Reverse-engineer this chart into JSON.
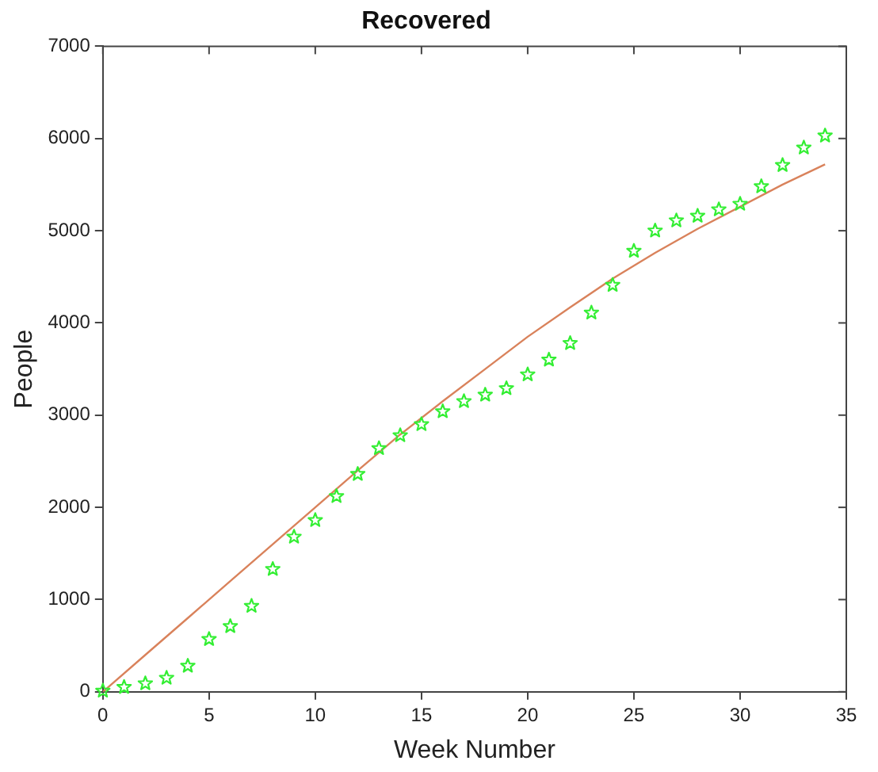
{
  "chart_data": {
    "type": "scatter",
    "title": "Recovered",
    "xlabel": "Week Number",
    "ylabel": "People",
    "xlim": [
      0,
      35
    ],
    "xticks": [
      0,
      5,
      10,
      15,
      20,
      25,
      30,
      35
    ],
    "ylim": [
      0,
      7000
    ],
    "yticks": [
      0,
      1000,
      2000,
      3000,
      4000,
      5000,
      6000,
      7000
    ],
    "grid": false,
    "legend": false,
    "series": [
      {
        "color": "#33ee33",
        "marker": "star",
        "x": [
          0,
          1,
          2,
          3,
          4,
          5,
          6,
          7,
          8,
          9,
          10,
          11,
          12,
          13,
          14,
          15,
          16,
          17,
          18,
          19,
          20,
          21,
          22,
          23,
          24,
          25,
          26,
          27,
          28,
          29,
          30,
          31,
          32,
          33,
          34
        ],
        "values": [
          10,
          50,
          90,
          150,
          280,
          570,
          710,
          930,
          1330,
          1680,
          1860,
          2120,
          2360,
          2640,
          2780,
          2900,
          3040,
          3150,
          3220,
          3290,
          3440,
          3600,
          3780,
          4110,
          4410,
          4780,
          5000,
          5110,
          5160,
          5230,
          5290,
          5480,
          5710,
          5900,
          6030
        ]
      },
      {
        "type": "line",
        "color": "#d9825b",
        "marker": "none",
        "line_style": "solid",
        "x": [
          0,
          2,
          4,
          6,
          8,
          10,
          12,
          14,
          16,
          18,
          20,
          22,
          24,
          26,
          28,
          30,
          32,
          34
        ],
        "values": [
          0,
          400,
          800,
          1200,
          1600,
          2000,
          2400,
          2790,
          3150,
          3500,
          3850,
          4170,
          4480,
          4760,
          5020,
          5260,
          5500,
          5720
        ]
      }
    ]
  }
}
